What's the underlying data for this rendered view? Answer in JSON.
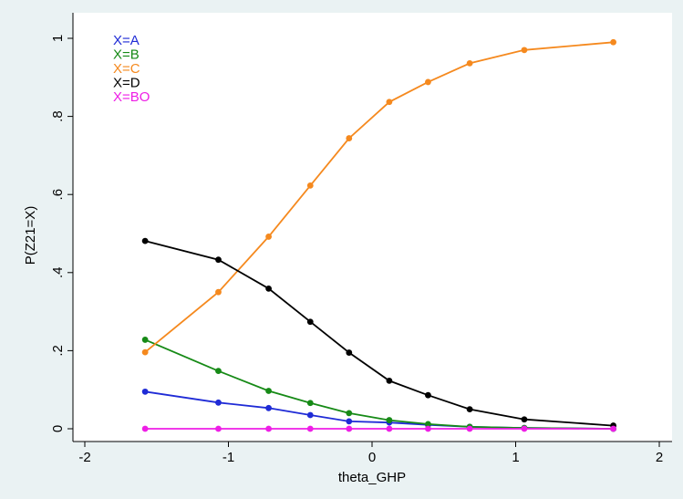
{
  "chart_data": {
    "type": "line",
    "title": "",
    "xlabel": "theta_GHP",
    "ylabel": "P(Z21=X)",
    "xlim": [
      -2,
      2
    ],
    "ylim": [
      0,
      1
    ],
    "grid": false,
    "legend_position": "top-left",
    "x_ticks": [
      {
        "value": -2,
        "label": "-2"
      },
      {
        "value": -1,
        "label": "-1"
      },
      {
        "value": 0,
        "label": "0"
      },
      {
        "value": 1,
        "label": "1"
      },
      {
        "value": 2,
        "label": "2"
      }
    ],
    "y_ticks": [
      {
        "value": 0,
        "label": "0"
      },
      {
        "value": 0.2,
        "label": ".2"
      },
      {
        "value": 0.4,
        "label": ".4"
      },
      {
        "value": 0.6,
        "label": ".6"
      },
      {
        "value": 0.8,
        "label": ".8"
      },
      {
        "value": 1,
        "label": "1"
      }
    ],
    "x": [
      -1.58,
      -1.07,
      -0.72,
      -0.43,
      -0.16,
      0.12,
      0.39,
      0.68,
      1.06,
      1.68
    ],
    "series": [
      {
        "name": "X=A",
        "color": "#1f2bd6",
        "values": [
          0.095,
          0.067,
          0.053,
          0.035,
          0.019,
          0.016,
          0.01,
          0.005,
          0.002,
          0.0
        ]
      },
      {
        "name": "X=B",
        "color": "#168a16",
        "values": [
          0.228,
          0.148,
          0.097,
          0.066,
          0.04,
          0.022,
          0.012,
          0.005,
          0.002,
          0.0
        ]
      },
      {
        "name": "X=C",
        "color": "#f5891e",
        "values": [
          0.196,
          0.35,
          0.492,
          0.623,
          0.744,
          0.837,
          0.888,
          0.936,
          0.97,
          0.99
        ]
      },
      {
        "name": "X=D",
        "color": "#000000",
        "values": [
          0.481,
          0.433,
          0.359,
          0.274,
          0.195,
          0.123,
          0.086,
          0.05,
          0.024,
          0.008
        ]
      },
      {
        "name": "X=BO",
        "color": "#ee1ee6",
        "values": [
          0.0,
          0.0,
          0.0,
          0.0,
          0.0,
          0.0,
          0.0,
          0.0,
          0.0,
          0.0
        ]
      }
    ]
  }
}
